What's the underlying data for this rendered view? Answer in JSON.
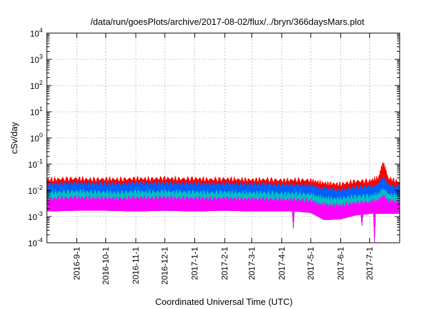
{
  "chart_data": {
    "type": "area",
    "title": "/data/run/goesPlots/archive/2017-08-02/flux/../bryn/366daysMars.plot",
    "xlabel": "Coordinated Universal Time (UTC)",
    "ylabel": "cSv/day",
    "y_scale": "log",
    "ylim": [
      0.0001,
      10000
    ],
    "xlim": [
      "2016-08-01",
      "2017-08-01"
    ],
    "grid": true,
    "y_ticks": [
      {
        "value": 0.0001,
        "base": "10",
        "exp": "-4"
      },
      {
        "value": 0.001,
        "base": "10",
        "exp": "-3"
      },
      {
        "value": 0.01,
        "base": "10",
        "exp": "-2"
      },
      {
        "value": 0.1,
        "base": "10",
        "exp": "-1"
      },
      {
        "value": 1,
        "base": "10",
        "exp": "0"
      },
      {
        "value": 10,
        "base": "10",
        "exp": "1"
      },
      {
        "value": 100,
        "base": "10",
        "exp": "2"
      },
      {
        "value": 1000,
        "base": "10",
        "exp": "3"
      },
      {
        "value": 10000,
        "base": "10",
        "exp": "4"
      }
    ],
    "x_ticks": [
      {
        "date": "2016-09-01",
        "label": "2016-9-1"
      },
      {
        "date": "2016-10-01",
        "label": "2016-10-1"
      },
      {
        "date": "2016-11-01",
        "label": "2016-11-1"
      },
      {
        "date": "2016-12-01",
        "label": "2016-12-1"
      },
      {
        "date": "2017-01-01",
        "label": "2017-1-1"
      },
      {
        "date": "2017-02-01",
        "label": "2017-2-1"
      },
      {
        "date": "2017-03-01",
        "label": "2017-3-1"
      },
      {
        "date": "2017-04-01",
        "label": "2017-4-1"
      },
      {
        "date": "2017-05-01",
        "label": "2017-5-1"
      },
      {
        "date": "2017-06-01",
        "label": "2017-6-1"
      },
      {
        "date": "2017-07-01",
        "label": "2017-7-1"
      }
    ],
    "series": [
      {
        "color": "#ff0000",
        "x": [
          "2016-08-01",
          "2016-08-15",
          "2016-09-01",
          "2016-09-15",
          "2016-10-01",
          "2016-10-15",
          "2016-11-01",
          "2016-11-15",
          "2016-12-01",
          "2016-12-15",
          "2017-01-01",
          "2017-01-15",
          "2017-02-01",
          "2017-02-15",
          "2017-03-01",
          "2017-03-15",
          "2017-04-01",
          "2017-04-15",
          "2017-05-01",
          "2017-05-10",
          "2017-05-20",
          "2017-06-01",
          "2017-06-15",
          "2017-07-01",
          "2017-07-10",
          "2017-07-15",
          "2017-07-20",
          "2017-08-01"
        ],
        "y": [
          0.025,
          0.027,
          0.028,
          0.026,
          0.027,
          0.026,
          0.028,
          0.027,
          0.029,
          0.027,
          0.028,
          0.026,
          0.027,
          0.026,
          0.025,
          0.026,
          0.024,
          0.025,
          0.024,
          0.02,
          0.018,
          0.017,
          0.022,
          0.023,
          0.03,
          0.12,
          0.03,
          0.02
        ]
      },
      {
        "color": "#0060ff",
        "x": [
          "2016-08-01",
          "2016-08-15",
          "2016-09-01",
          "2016-09-15",
          "2016-10-01",
          "2016-10-15",
          "2016-11-01",
          "2016-11-15",
          "2016-12-01",
          "2016-12-15",
          "2017-01-01",
          "2017-01-15",
          "2017-02-01",
          "2017-02-15",
          "2017-03-01",
          "2017-03-15",
          "2017-04-01",
          "2017-04-15",
          "2017-05-01",
          "2017-05-10",
          "2017-05-20",
          "2017-06-01",
          "2017-06-15",
          "2017-07-01",
          "2017-07-10",
          "2017-07-15",
          "2017-07-20",
          "2017-08-01"
        ],
        "y": [
          0.017,
          0.018,
          0.019,
          0.018,
          0.018,
          0.017,
          0.019,
          0.018,
          0.019,
          0.018,
          0.018,
          0.017,
          0.018,
          0.017,
          0.017,
          0.017,
          0.016,
          0.016,
          0.015,
          0.012,
          0.011,
          0.01,
          0.013,
          0.014,
          0.016,
          0.03,
          0.016,
          0.013
        ]
      },
      {
        "color": "#00c0c0",
        "x": [
          "2016-08-01",
          "2016-08-15",
          "2016-09-01",
          "2016-09-15",
          "2016-10-01",
          "2016-10-15",
          "2016-11-01",
          "2016-11-15",
          "2016-12-01",
          "2016-12-15",
          "2017-01-01",
          "2017-01-15",
          "2017-02-01",
          "2017-02-15",
          "2017-03-01",
          "2017-03-15",
          "2017-04-01",
          "2017-04-15",
          "2017-05-01",
          "2017-05-10",
          "2017-05-20",
          "2017-06-01",
          "2017-06-15",
          "2017-07-01",
          "2017-07-10",
          "2017-07-15",
          "2017-07-20",
          "2017-08-01"
        ],
        "y": [
          0.008,
          0.0085,
          0.009,
          0.0085,
          0.0085,
          0.008,
          0.009,
          0.0085,
          0.009,
          0.0085,
          0.0085,
          0.008,
          0.0085,
          0.008,
          0.008,
          0.008,
          0.0075,
          0.0075,
          0.007,
          0.0055,
          0.005,
          0.0048,
          0.0058,
          0.0062,
          0.007,
          0.011,
          0.007,
          0.006
        ]
      },
      {
        "color": "#ff00ff",
        "x": [
          "2016-08-01",
          "2016-08-15",
          "2016-09-01",
          "2016-09-15",
          "2016-10-01",
          "2016-10-15",
          "2016-11-01",
          "2016-11-15",
          "2016-12-01",
          "2016-12-15",
          "2017-01-01",
          "2017-01-15",
          "2017-02-01",
          "2017-02-15",
          "2017-03-01",
          "2017-03-15",
          "2017-04-01",
          "2017-04-15",
          "2017-05-01",
          "2017-05-10",
          "2017-05-20",
          "2017-06-01",
          "2017-06-15",
          "2017-07-01",
          "2017-07-10",
          "2017-07-15",
          "2017-07-20",
          "2017-08-01"
        ],
        "y": [
          0.0045,
          0.005,
          0.0052,
          0.005,
          0.005,
          0.0048,
          0.0052,
          0.005,
          0.0053,
          0.005,
          0.005,
          0.0048,
          0.005,
          0.0047,
          0.0047,
          0.0046,
          0.0044,
          0.0044,
          0.004,
          0.003,
          0.0027,
          0.0026,
          0.0033,
          0.0036,
          0.004,
          0.006,
          0.004,
          0.0035
        ]
      }
    ],
    "floor": {
      "color": "#ff00ff",
      "x": [
        "2016-08-01",
        "2016-09-01",
        "2016-10-01",
        "2016-11-01",
        "2016-12-01",
        "2017-01-01",
        "2017-02-01",
        "2017-03-01",
        "2017-04-01",
        "2017-04-12",
        "2017-04-13",
        "2017-04-14",
        "2017-05-01",
        "2017-05-15",
        "2017-06-01",
        "2017-06-15",
        "2017-06-22",
        "2017-06-23",
        "2017-06-24",
        "2017-07-01",
        "2017-07-05",
        "2017-07-06",
        "2017-07-07",
        "2017-08-01"
      ],
      "y": [
        0.0016,
        0.0017,
        0.0017,
        0.0016,
        0.0017,
        0.0016,
        0.0017,
        0.0016,
        0.0016,
        0.0016,
        0.00035,
        0.0016,
        0.0014,
        0.00075,
        0.0008,
        0.0011,
        0.0012,
        0.00045,
        0.0012,
        0.0013,
        0.0013,
        0.0001,
        0.0013,
        0.0013
      ]
    }
  }
}
